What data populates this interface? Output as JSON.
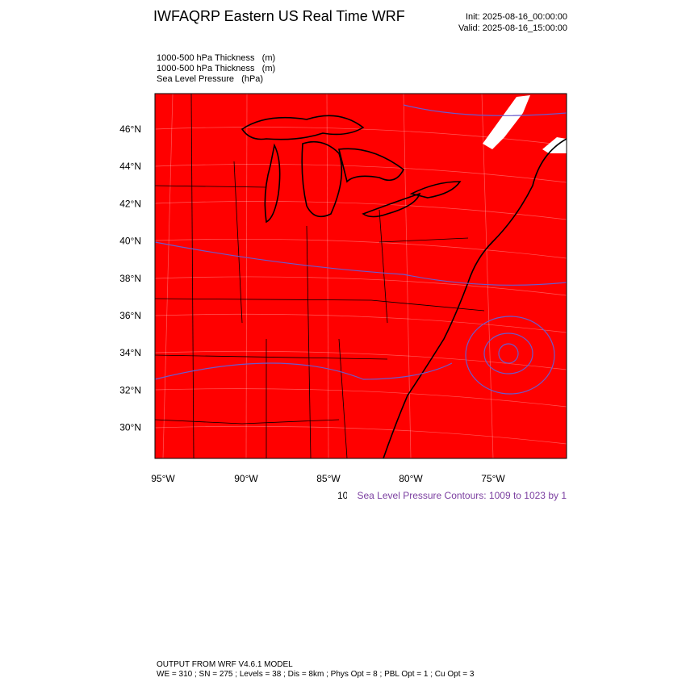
{
  "header": {
    "title": "IWFAQRP Eastern US Real Time WRF",
    "init": "Init: 2025-08-16_00:00:00",
    "valid": "Valid: 2025-08-16_15:00:00"
  },
  "fields": [
    "1000-500 hPa Thickness   (m)",
    "1000-500 hPa Thickness   (m)",
    "Sea Level Pressure   (hPa)"
  ],
  "map": {
    "lat_labels": [
      "46°N",
      "44°N",
      "42°N",
      "40°N",
      "38°N",
      "36°N",
      "34°N",
      "32°N",
      "30°N"
    ],
    "lon_labels": [
      "95°W",
      "90°W",
      "85°W",
      "80°W",
      "75°W"
    ]
  },
  "contour_info": {
    "hidden": "10",
    "text": "Sea Level Pressure Contours: 1009 to 1023 by 1"
  },
  "footer": {
    "line1": "OUTPUT FROM WRF V4.6.1 MODEL",
    "line2": "WE = 310 ; SN = 275 ; Levels = 38 ; Dis = 8km ; Phys Opt = 8 ; PBL Opt = 1 ; Cu Opt = 3"
  }
}
